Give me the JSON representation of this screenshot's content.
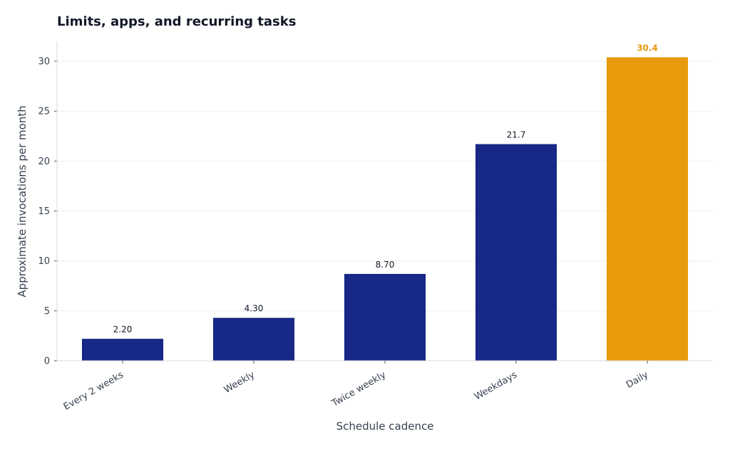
{
  "chart_data": {
    "type": "bar",
    "title": "Limits, apps, and recurring tasks",
    "xlabel": "Schedule cadence",
    "ylabel": "Approximate invocations per month",
    "categories": [
      "Every 2 weeks",
      "Weekly",
      "Twice weekly",
      "Weekdays",
      "Daily"
    ],
    "values": [
      2.2,
      4.3,
      8.7,
      21.7,
      30.4
    ],
    "data_labels": [
      "2.20",
      "4.30",
      "8.70",
      "21.7",
      "30.4"
    ],
    "ylim": [
      0,
      32
    ],
    "yticks": [
      0,
      5,
      10,
      15,
      20,
      25,
      30
    ],
    "grid": true,
    "highlight_index": 4,
    "colors": {
      "bar": "#172886",
      "highlight": "#E89B0C",
      "grid": "#EEEEEE",
      "axis": "#D9D9D9"
    }
  }
}
